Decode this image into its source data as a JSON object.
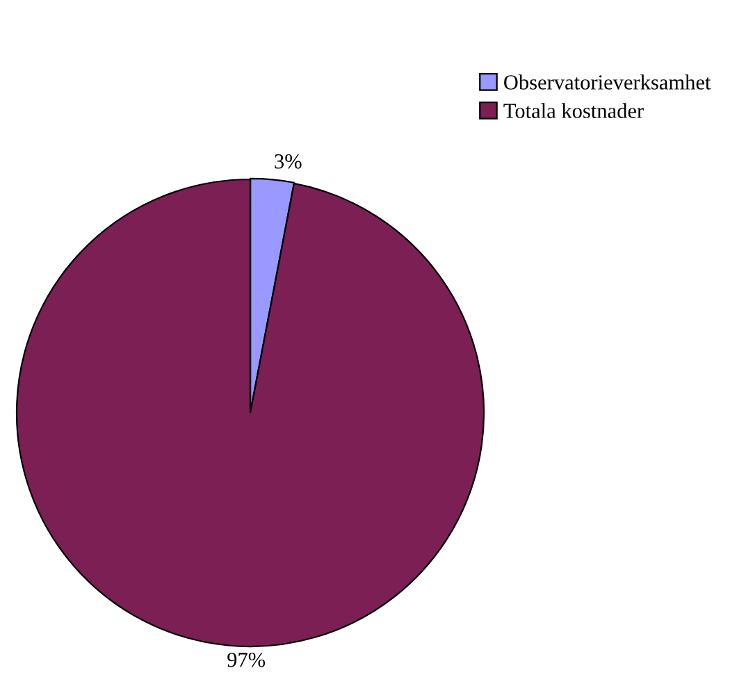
{
  "chart_data": {
    "type": "pie",
    "categories": [
      "Observatorieverksamhet",
      "Totala kostnader"
    ],
    "values": [
      3,
      97
    ],
    "colors": [
      "#9999ff",
      "#7b1f55"
    ],
    "value_labels": [
      "3%",
      "97%"
    ],
    "legend": "top right"
  }
}
